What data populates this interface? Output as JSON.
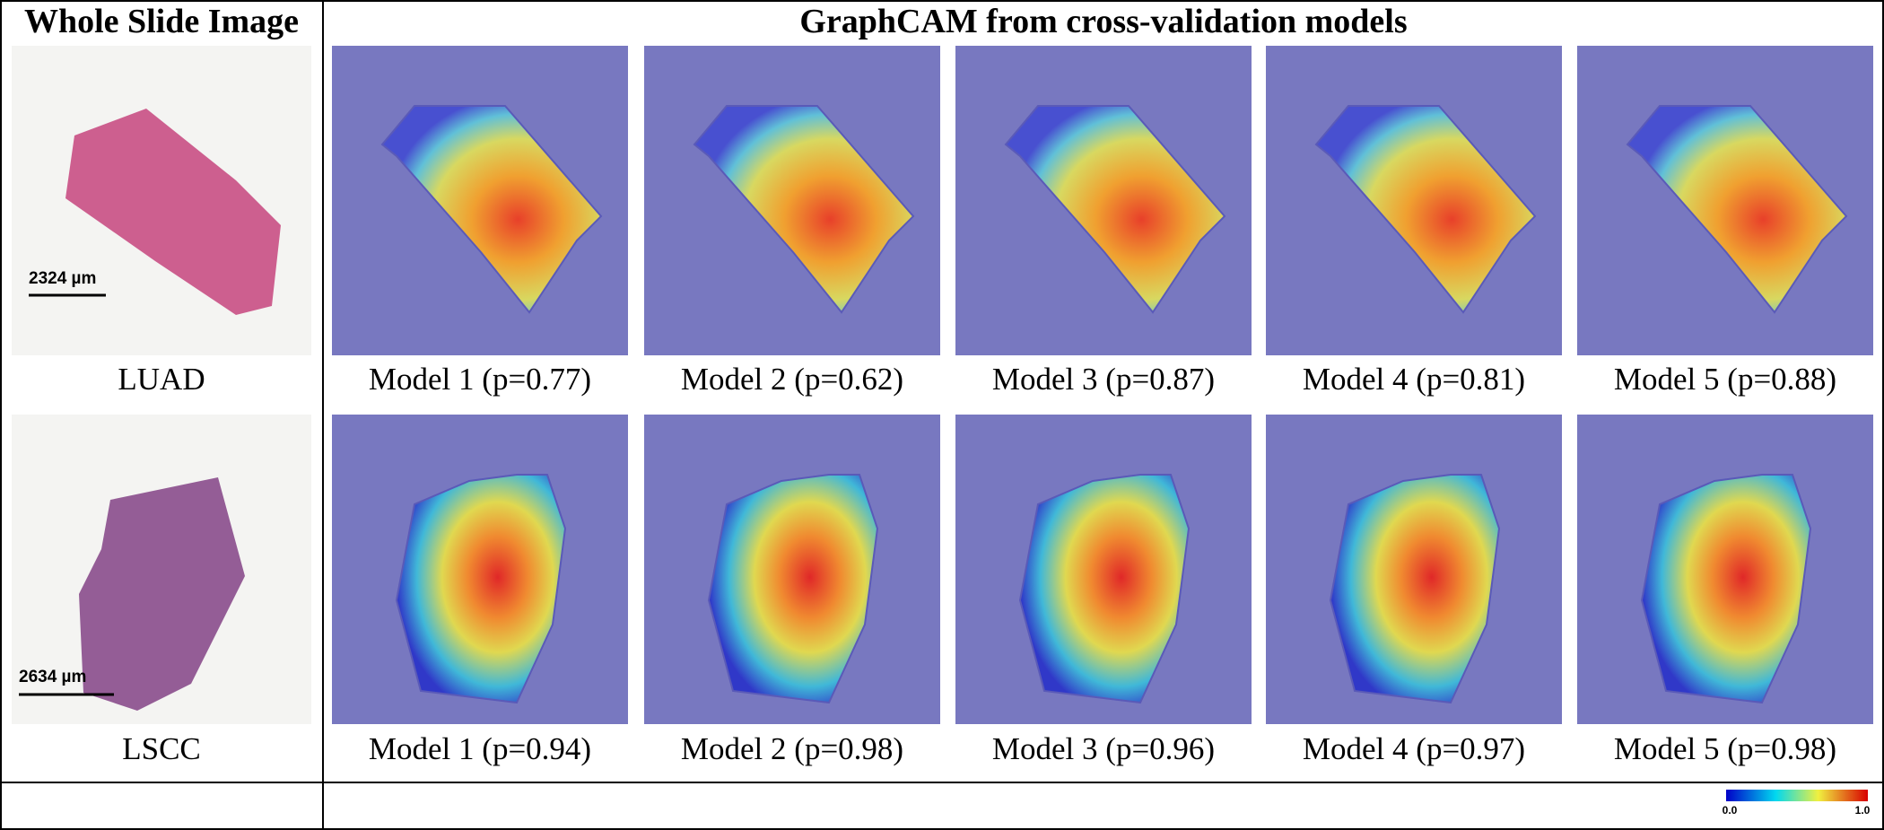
{
  "header": {
    "left": "Whole Slide Image",
    "right": "GraphCAM from cross-validation models"
  },
  "rows": [
    {
      "label": "LUAD",
      "scale_bar": "2324 µm",
      "models": [
        "Model 1 (p=0.77)",
        "Model 2 (p=0.62)",
        "Model 3 (p=0.87)",
        "Model 4 (p=0.81)",
        "Model 5 (p=0.88)"
      ]
    },
    {
      "label": "LSCC",
      "scale_bar": "2634 µm",
      "models": [
        "Model 1 (p=0.94)",
        "Model 2 (p=0.98)",
        "Model 3 (p=0.96)",
        "Model 4 (p=0.97)",
        "Model 5 (p=0.98)"
      ]
    }
  ],
  "colorbar": {
    "min_label": "0.0",
    "max_label": "1.0"
  }
}
